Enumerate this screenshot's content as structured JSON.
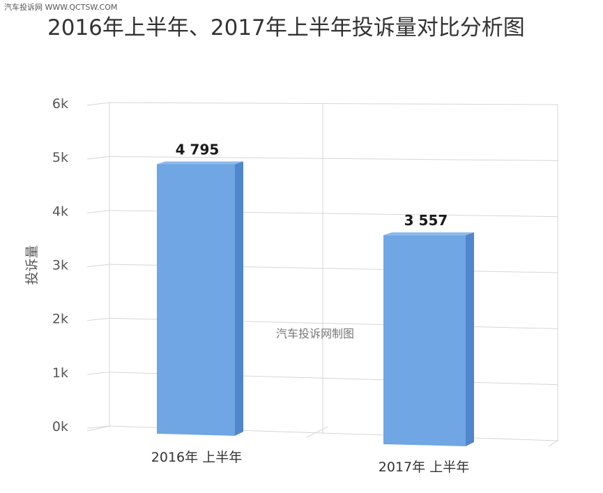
{
  "watermark_top": "汽车投诉网 WWW.QCTSW.COM",
  "chart_data": {
    "type": "bar",
    "title": "2016年上半年、2017年上半年投诉量对比分析图",
    "categories": [
      "2016年 上半年",
      "2017年 上半年"
    ],
    "values": [
      4795,
      3557
    ],
    "value_labels": [
      "4 795",
      "3 557"
    ],
    "xlabel": "",
    "ylabel": "投诉量",
    "ylim": [
      0,
      6000
    ],
    "yticks": [
      "0k",
      "1k",
      "2k",
      "3k",
      "4k",
      "5k",
      "6k"
    ],
    "grid": true,
    "legend": "none",
    "annotation": "汽车投诉网制图",
    "colors": {
      "bar_front": "#6fa6e3",
      "bar_side": "#4f86cc",
      "bar_top": "#8cbaeb",
      "grid": "#d6d6d6"
    }
  }
}
